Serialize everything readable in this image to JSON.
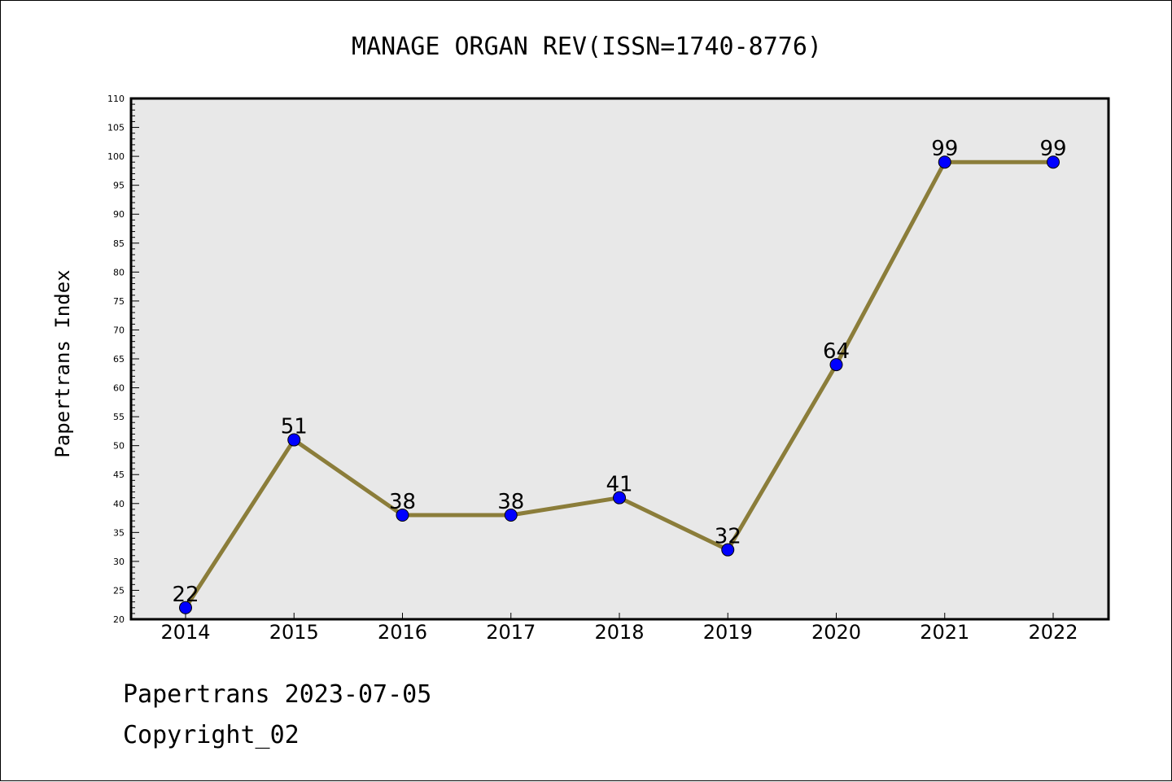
{
  "chart_data": {
    "type": "line",
    "title": "MANAGE ORGAN REV(ISSN=1740-8776)",
    "xlabel": "",
    "ylabel": "Papertrans Index",
    "categories": [
      "2014",
      "2015",
      "2016",
      "2017",
      "2018",
      "2019",
      "2020",
      "2021",
      "2022"
    ],
    "values": [
      22,
      51,
      38,
      38,
      41,
      32,
      64,
      99,
      99
    ],
    "ylim": [
      20,
      110
    ],
    "ytick_step": 5,
    "grid": false,
    "legend": "none",
    "colors": {
      "line": "#8b7d3a",
      "marker": "#0000ff",
      "plot_bg": "#e8e8e8"
    }
  },
  "footer": {
    "line1": "Papertrans 2023-07-05",
    "line2": "Copyright_02"
  }
}
